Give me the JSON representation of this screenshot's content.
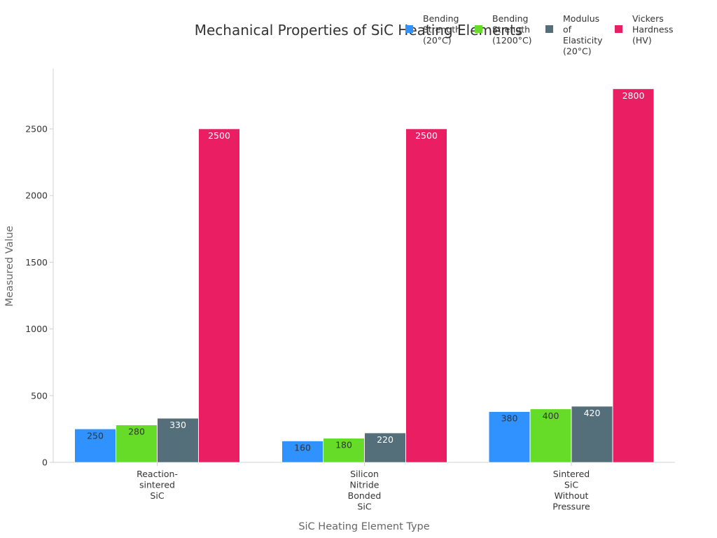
{
  "chart_data": {
    "type": "bar",
    "title": "Mechanical Properties of SiC Heating Elements",
    "xlabel": "SiC Heating Element Type",
    "ylabel": "Measured Value",
    "categories": [
      [
        "Reaction-",
        "sintered",
        "SiC"
      ],
      [
        "Silicon",
        "Nitride",
        "Bonded",
        "SiC"
      ],
      [
        "Sintered",
        "SiC",
        "Without",
        "Pressure"
      ]
    ],
    "series": [
      {
        "name": [
          "Bending",
          "Strength",
          "(20°C)"
        ],
        "color": "#2f92ff",
        "label_color": "#333333",
        "values": [
          250,
          160,
          380
        ]
      },
      {
        "name": [
          "Bending",
          "Strength",
          "(1200°C)"
        ],
        "color": "#66dc28",
        "label_color": "#333333",
        "values": [
          280,
          180,
          400
        ]
      },
      {
        "name": [
          "Modulus",
          "of",
          "Elasticity",
          "(20°C)"
        ],
        "color": "#546e7a",
        "label_color": "#ffffff",
        "values": [
          330,
          220,
          420
        ]
      },
      {
        "name": [
          "Vickers",
          "Hardness",
          "(HV)"
        ],
        "color": "#e91e63",
        "label_color": "#ffffff",
        "values": [
          2500,
          2500,
          2800
        ]
      }
    ],
    "ylim": [
      0,
      2950
    ],
    "yticks": [
      0,
      500,
      1000,
      1500,
      2000,
      2500
    ],
    "grid": false,
    "legend_position": "top-right"
  }
}
